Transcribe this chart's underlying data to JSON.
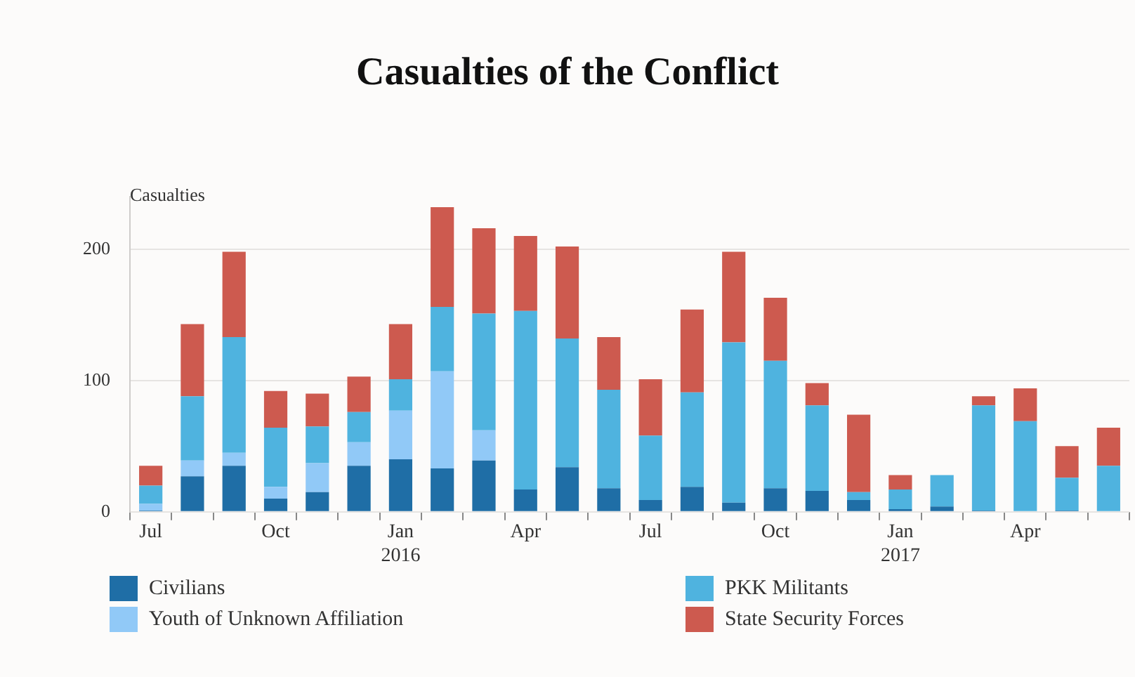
{
  "chart_data": {
    "type": "bar",
    "title": "Casualties of the Conflict",
    "ylabel": "Casualties",
    "categories": [
      "Jul",
      null,
      null,
      "Oct",
      null,
      null,
      "Jan\n2016",
      null,
      null,
      "Apr",
      null,
      null,
      "Jul",
      null,
      null,
      "Oct",
      null,
      null,
      "Jan\n2017",
      null,
      null,
      "Apr",
      null,
      null
    ],
    "stacked": true,
    "ylim": [
      0,
      240
    ],
    "yticks": [
      0,
      100,
      200
    ],
    "grid": "y",
    "legend": "bottom",
    "series": [
      {
        "name": "Civilians",
        "color": "#1f6ea6",
        "values": [
          1,
          27,
          35,
          10,
          15,
          35,
          40,
          33,
          39,
          17,
          34,
          18,
          9,
          19,
          7,
          18,
          16,
          9,
          2,
          4,
          1,
          0,
          1,
          0
        ]
      },
      {
        "name": "Youth of Unknown Affiliation",
        "color": "#91c9f7",
        "values": [
          5,
          12,
          10,
          9,
          22,
          18,
          37,
          74,
          23,
          0,
          0,
          0,
          0,
          0,
          0,
          0,
          0,
          0,
          0,
          0,
          0,
          0,
          0,
          0
        ]
      },
      {
        "name": "PKK Militants",
        "color": "#4fb3df",
        "values": [
          14,
          49,
          88,
          45,
          28,
          23,
          24,
          49,
          89,
          136,
          98,
          75,
          49,
          72,
          122,
          97,
          65,
          6,
          15,
          24,
          80,
          69,
          25,
          35
        ]
      },
      {
        "name": "State Security Forces",
        "color": "#cd5a4f",
        "values": [
          15,
          55,
          65,
          28,
          25,
          27,
          42,
          76,
          65,
          57,
          70,
          40,
          43,
          63,
          69,
          48,
          17,
          59,
          11,
          0,
          7,
          25,
          24,
          29
        ]
      }
    ]
  }
}
